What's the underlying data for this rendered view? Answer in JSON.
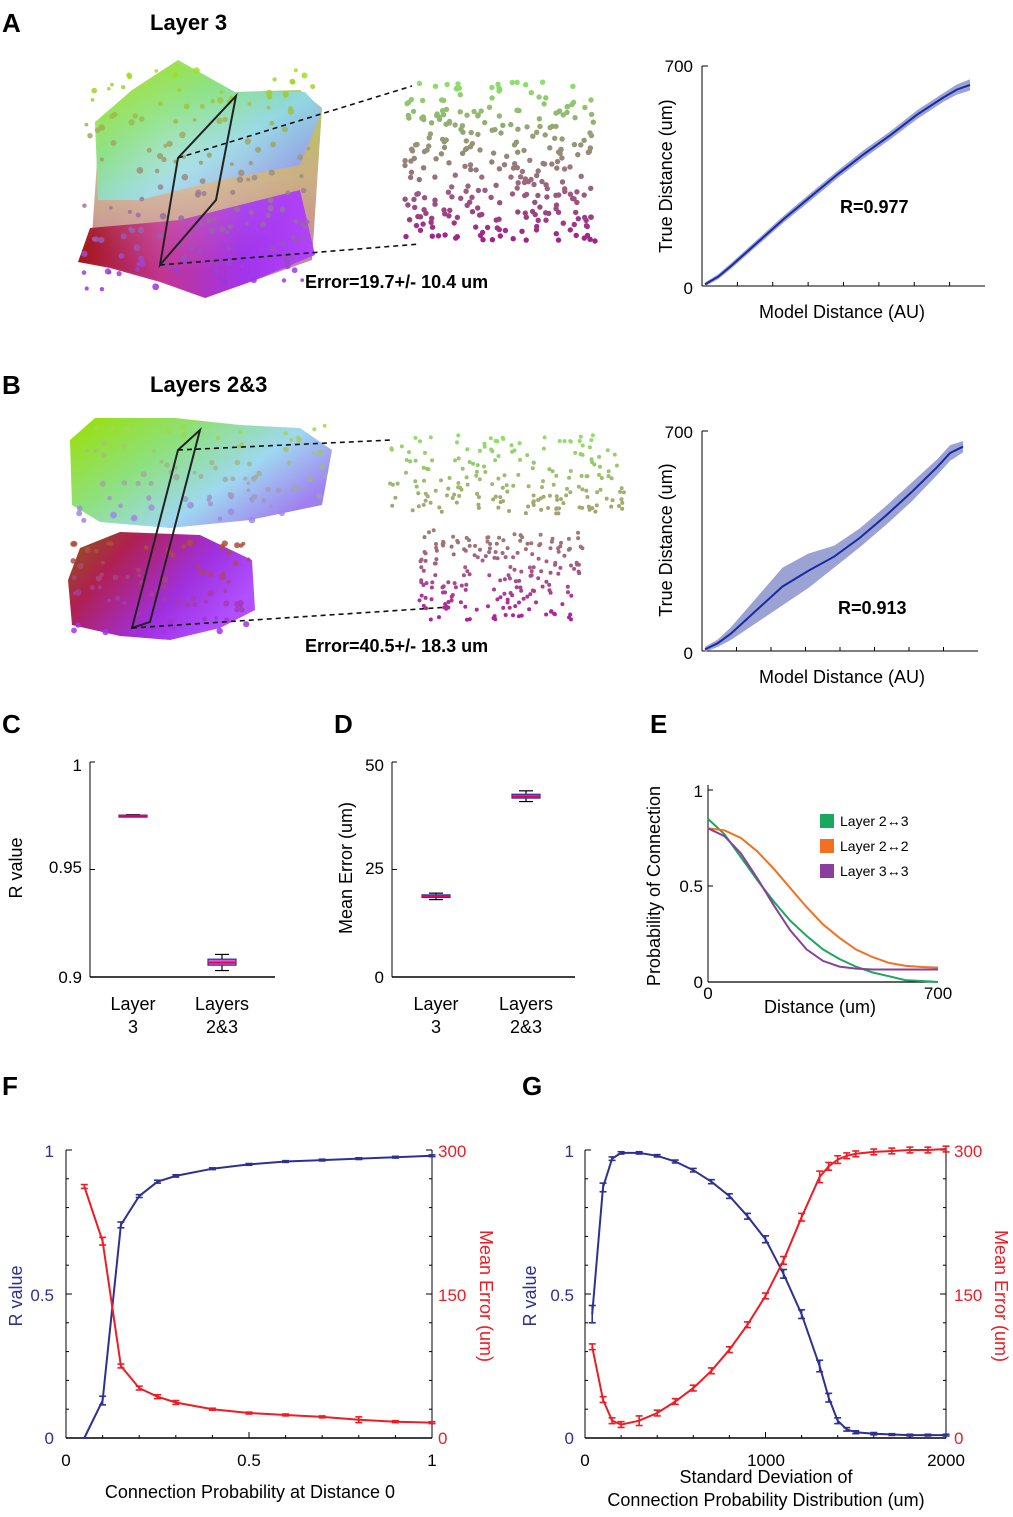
{
  "panels": {
    "A": {
      "label": "A",
      "title": "Layer 3",
      "error_text": "Error=19.7+/- 10.4 um"
    },
    "B": {
      "label": "B",
      "title": "Layers 2&3",
      "error_text": "Error=40.5+/- 18.3 um"
    },
    "C": {
      "label": "C"
    },
    "D": {
      "label": "D"
    },
    "E": {
      "label": "E"
    },
    "F": {
      "label": "F"
    },
    "G": {
      "label": "G"
    }
  },
  "colors": {
    "blue_line": "#2e3192",
    "blue_band": "#8a93cc",
    "red_line": "#ee1c24",
    "green": "#1aa760",
    "orange": "#f37021",
    "purple": "#8a3f9c",
    "box_fill": "#d060d0",
    "box_median": "#e8005a"
  },
  "chart_data": [
    {
      "id": "A-right",
      "type": "line",
      "xlabel": "Model Distance (AU)",
      "ylabel": "True Distance (um)",
      "yticks": [
        "0",
        "700"
      ],
      "ylim": [
        0,
        700
      ],
      "xlim": [
        0,
        1
      ],
      "annotation": "R=0.977",
      "x": [
        0.0,
        0.05,
        0.1,
        0.2,
        0.3,
        0.4,
        0.5,
        0.6,
        0.7,
        0.8,
        0.9,
        0.95,
        1.0
      ],
      "y": [
        5,
        30,
        65,
        140,
        215,
        285,
        355,
        420,
        480,
        545,
        600,
        625,
        640
      ],
      "band": [
        6,
        8,
        9,
        10,
        11,
        12,
        12,
        13,
        13,
        14,
        14,
        16,
        18
      ]
    },
    {
      "id": "B-right",
      "type": "line",
      "xlabel": "Model Distance (AU)",
      "ylabel": "True Distance (um)",
      "yticks": [
        "0",
        "700"
      ],
      "ylim": [
        0,
        700
      ],
      "xlim": [
        0,
        1
      ],
      "annotation": "R=0.913",
      "x": [
        0.0,
        0.05,
        0.1,
        0.2,
        0.3,
        0.4,
        0.5,
        0.6,
        0.7,
        0.8,
        0.9,
        0.95,
        1.0
      ],
      "y": [
        5,
        25,
        55,
        130,
        205,
        255,
        300,
        360,
        430,
        505,
        585,
        630,
        650
      ],
      "band": [
        8,
        12,
        20,
        40,
        60,
        55,
        35,
        30,
        30,
        30,
        25,
        25,
        18
      ]
    },
    {
      "id": "C",
      "type": "box",
      "ylabel": "R value",
      "ylim": [
        0.9,
        1.0
      ],
      "yticks": [
        "0.9",
        "0.95",
        "1"
      ],
      "categories": [
        [
          "Layer",
          "3"
        ],
        [
          "Layers",
          "2&3"
        ]
      ],
      "boxes": [
        {
          "min": 0.9745,
          "q1": 0.9747,
          "median": 0.975,
          "q3": 0.9753,
          "max": 0.9755
        },
        {
          "min": 0.903,
          "q1": 0.9055,
          "median": 0.9067,
          "q3": 0.9083,
          "max": 0.9105
        }
      ]
    },
    {
      "id": "D",
      "type": "box",
      "ylabel": "Mean Error (um)",
      "ylim": [
        0,
        50
      ],
      "yticks": [
        "0",
        "25",
        "50"
      ],
      "categories": [
        [
          "Layer",
          "3"
        ],
        [
          "Layers",
          "2&3"
        ]
      ],
      "boxes": [
        {
          "min": 18.0,
          "q1": 18.5,
          "median": 18.8,
          "q3": 19.1,
          "max": 19.5
        },
        {
          "min": 40.8,
          "q1": 41.6,
          "median": 42.0,
          "q3": 42.5,
          "max": 43.3
        }
      ]
    },
    {
      "id": "E",
      "type": "line",
      "xlabel": "Distance (um)",
      "ylabel": "Probability of Connection",
      "xticks": [
        "0",
        "700"
      ],
      "yticks": [
        "0",
        "0.5",
        "1"
      ],
      "xlim": [
        0,
        700
      ],
      "ylim": [
        0,
        1
      ],
      "series": [
        {
          "name": "Layer 2↔3",
          "color_key": "green",
          "x": [
            0,
            50,
            100,
            150,
            200,
            250,
            300,
            350,
            400,
            450,
            500,
            550,
            600,
            650,
            700
          ],
          "y": [
            0.85,
            0.77,
            0.65,
            0.53,
            0.42,
            0.32,
            0.24,
            0.17,
            0.12,
            0.08,
            0.05,
            0.03,
            0.01,
            0.005,
            0.0
          ]
        },
        {
          "name": "Layer 2↔2",
          "color_key": "orange",
          "x": [
            0,
            50,
            100,
            150,
            200,
            250,
            300,
            350,
            400,
            450,
            500,
            550,
            600,
            650,
            700
          ],
          "y": [
            0.8,
            0.79,
            0.75,
            0.68,
            0.59,
            0.49,
            0.39,
            0.3,
            0.23,
            0.17,
            0.13,
            0.1,
            0.085,
            0.078,
            0.075
          ]
        },
        {
          "name": "Layer 3↔3",
          "color_key": "purple",
          "x": [
            0,
            50,
            100,
            150,
            200,
            250,
            300,
            350,
            400,
            450,
            500,
            550,
            600,
            650,
            700
          ],
          "y": [
            0.8,
            0.76,
            0.67,
            0.54,
            0.4,
            0.27,
            0.17,
            0.11,
            0.08,
            0.07,
            0.065,
            0.065,
            0.065,
            0.065,
            0.065
          ]
        }
      ]
    },
    {
      "id": "F",
      "type": "line",
      "xlabel": "Connection Probability at Distance 0",
      "ylabel_left": "R value",
      "ylabel_right": "Mean Error (um)",
      "xticks": [
        "0",
        "0.5",
        "1"
      ],
      "yticks_left": [
        "0",
        "0.5",
        "1"
      ],
      "yticks_right": [
        "0",
        "150",
        "300"
      ],
      "xlim": [
        0,
        1
      ],
      "ylim_left": [
        0,
        1
      ],
      "ylim_right": [
        0,
        300
      ],
      "series": [
        {
          "name": "R value",
          "axis": "left",
          "color_key": "blue_line",
          "x": [
            0.05,
            0.1,
            0.15,
            0.2,
            0.25,
            0.3,
            0.4,
            0.5,
            0.6,
            0.7,
            0.8,
            0.9,
            1.0
          ],
          "y": [
            0.0,
            0.13,
            0.74,
            0.84,
            0.89,
            0.91,
            0.935,
            0.95,
            0.96,
            0.965,
            0.97,
            0.975,
            0.98
          ],
          "err": [
            0.0,
            0.015,
            0.01,
            0.005,
            0.005,
            0.004,
            0.003,
            0.003,
            0.003,
            0.003,
            0.003,
            0.003,
            0.003
          ]
        },
        {
          "name": "Mean Error",
          "axis": "right",
          "color_key": "red_line",
          "x": [
            0.05,
            0.1,
            0.15,
            0.2,
            0.25,
            0.3,
            0.4,
            0.5,
            0.6,
            0.7,
            0.8,
            0.9,
            1.0
          ],
          "y": [
            262,
            205,
            75,
            52,
            43,
            37,
            30,
            26,
            24,
            22,
            19,
            17,
            16
          ],
          "err": [
            2,
            4,
            2,
            2,
            2,
            2,
            1,
            1,
            1,
            1,
            3,
            1,
            1
          ]
        }
      ]
    },
    {
      "id": "G",
      "type": "line",
      "xlabel": [
        "Standard Deviation of",
        "Connection Probability Distribution (um)"
      ],
      "ylabel_left": "R value",
      "ylabel_right": "Mean Error (um)",
      "xticks": [
        "0",
        "1000",
        "2000"
      ],
      "yticks_left": [
        "0",
        "0.5",
        "1"
      ],
      "yticks_right": [
        "0",
        "150",
        "300"
      ],
      "xlim": [
        0,
        2000
      ],
      "ylim_left": [
        0,
        1
      ],
      "ylim_right": [
        0,
        300
      ],
      "series": [
        {
          "name": "R value",
          "axis": "left",
          "color_key": "blue_line",
          "x": [
            40,
            100,
            150,
            200,
            300,
            400,
            500,
            600,
            700,
            800,
            900,
            1000,
            1100,
            1200,
            1300,
            1350,
            1400,
            1450,
            1500,
            1600,
            1700,
            1800,
            1900,
            2000
          ],
          "y": [
            0.43,
            0.87,
            0.97,
            0.99,
            0.99,
            0.98,
            0.96,
            0.93,
            0.89,
            0.84,
            0.77,
            0.69,
            0.57,
            0.43,
            0.25,
            0.14,
            0.06,
            0.03,
            0.02,
            0.015,
            0.012,
            0.01,
            0.01,
            0.01
          ],
          "err": [
            0.03,
            0.015,
            0.006,
            0.004,
            0.004,
            0.004,
            0.005,
            0.006,
            0.007,
            0.008,
            0.01,
            0.012,
            0.015,
            0.015,
            0.02,
            0.015,
            0.01,
            0.006,
            0.005,
            0.004,
            0.003,
            0.003,
            0.003,
            0.003
          ]
        },
        {
          "name": "Mean Error",
          "axis": "right",
          "color_key": "red_line",
          "x": [
            40,
            100,
            150,
            200,
            300,
            400,
            500,
            600,
            700,
            800,
            900,
            1000,
            1100,
            1200,
            1300,
            1350,
            1400,
            1450,
            1500,
            1600,
            1700,
            1800,
            1900,
            2000
          ],
          "y": [
            95,
            40,
            18,
            14,
            18,
            26,
            38,
            52,
            70,
            92,
            118,
            148,
            185,
            230,
            272,
            283,
            290,
            294,
            296,
            298,
            299,
            300,
            300,
            301
          ],
          "err": [
            3,
            3,
            3,
            3,
            5,
            3,
            3,
            3,
            3,
            3,
            3,
            3,
            4,
            4,
            6,
            4,
            4,
            3,
            3,
            3,
            3,
            3,
            3,
            3
          ]
        }
      ]
    }
  ]
}
